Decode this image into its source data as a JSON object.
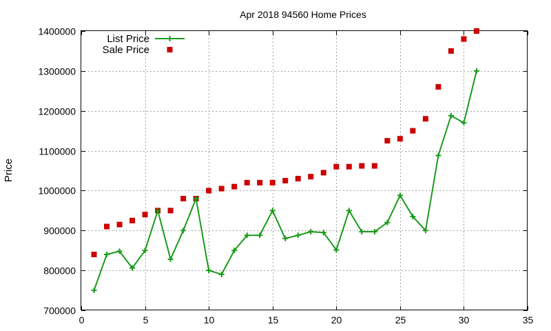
{
  "chart_data": {
    "type": "line",
    "title": "Apr 2018 94560 Home Prices",
    "xlabel": "",
    "ylabel": "Price",
    "xlim": [
      0,
      35
    ],
    "ylim": [
      700000,
      1400000
    ],
    "xticks": [
      "0",
      "5",
      "10",
      "15",
      "20",
      "25",
      "30",
      "35"
    ],
    "yticks": [
      "700000",
      "800000",
      "900000",
      "1000000",
      "1100000",
      "1200000",
      "1300000",
      "1400000"
    ],
    "grid": true,
    "legend_position": "top-left",
    "series": [
      {
        "name": "List Price",
        "style": "line-plus",
        "color": "#1a9a1a",
        "x": [
          1,
          2,
          3,
          4,
          5,
          6,
          7,
          8,
          9,
          10,
          11,
          12,
          13,
          14,
          15,
          16,
          17,
          18,
          19,
          20,
          21,
          22,
          23,
          24,
          25,
          26,
          27,
          28,
          29,
          30,
          31
        ],
        "y": [
          750000,
          840000,
          848000,
          806000,
          850000,
          950000,
          828000,
          900000,
          980000,
          800000,
          790000,
          850000,
          888000,
          888000,
          950000,
          880000,
          888000,
          897000,
          895000,
          851000,
          950000,
          897000,
          897000,
          920000,
          988000,
          935000,
          900000,
          1088000,
          1188000,
          1170000,
          1300000
        ]
      },
      {
        "name": "Sale Price",
        "style": "square-marker",
        "color": "#cc0000",
        "x": [
          1,
          2,
          3,
          4,
          5,
          6,
          7,
          8,
          9,
          10,
          11,
          12,
          13,
          14,
          15,
          16,
          17,
          18,
          19,
          20,
          21,
          22,
          23,
          24,
          25,
          26,
          27,
          28,
          29,
          30,
          31
        ],
        "y": [
          840000,
          910000,
          915000,
          925000,
          940000,
          950000,
          950000,
          980000,
          980000,
          1000000,
          1005000,
          1010000,
          1020000,
          1020000,
          1020000,
          1025000,
          1030000,
          1035000,
          1045000,
          1060000,
          1060000,
          1062000,
          1062000,
          1125000,
          1130000,
          1150000,
          1180000,
          1260000,
          1350000,
          1380000,
          1400000
        ]
      }
    ]
  }
}
